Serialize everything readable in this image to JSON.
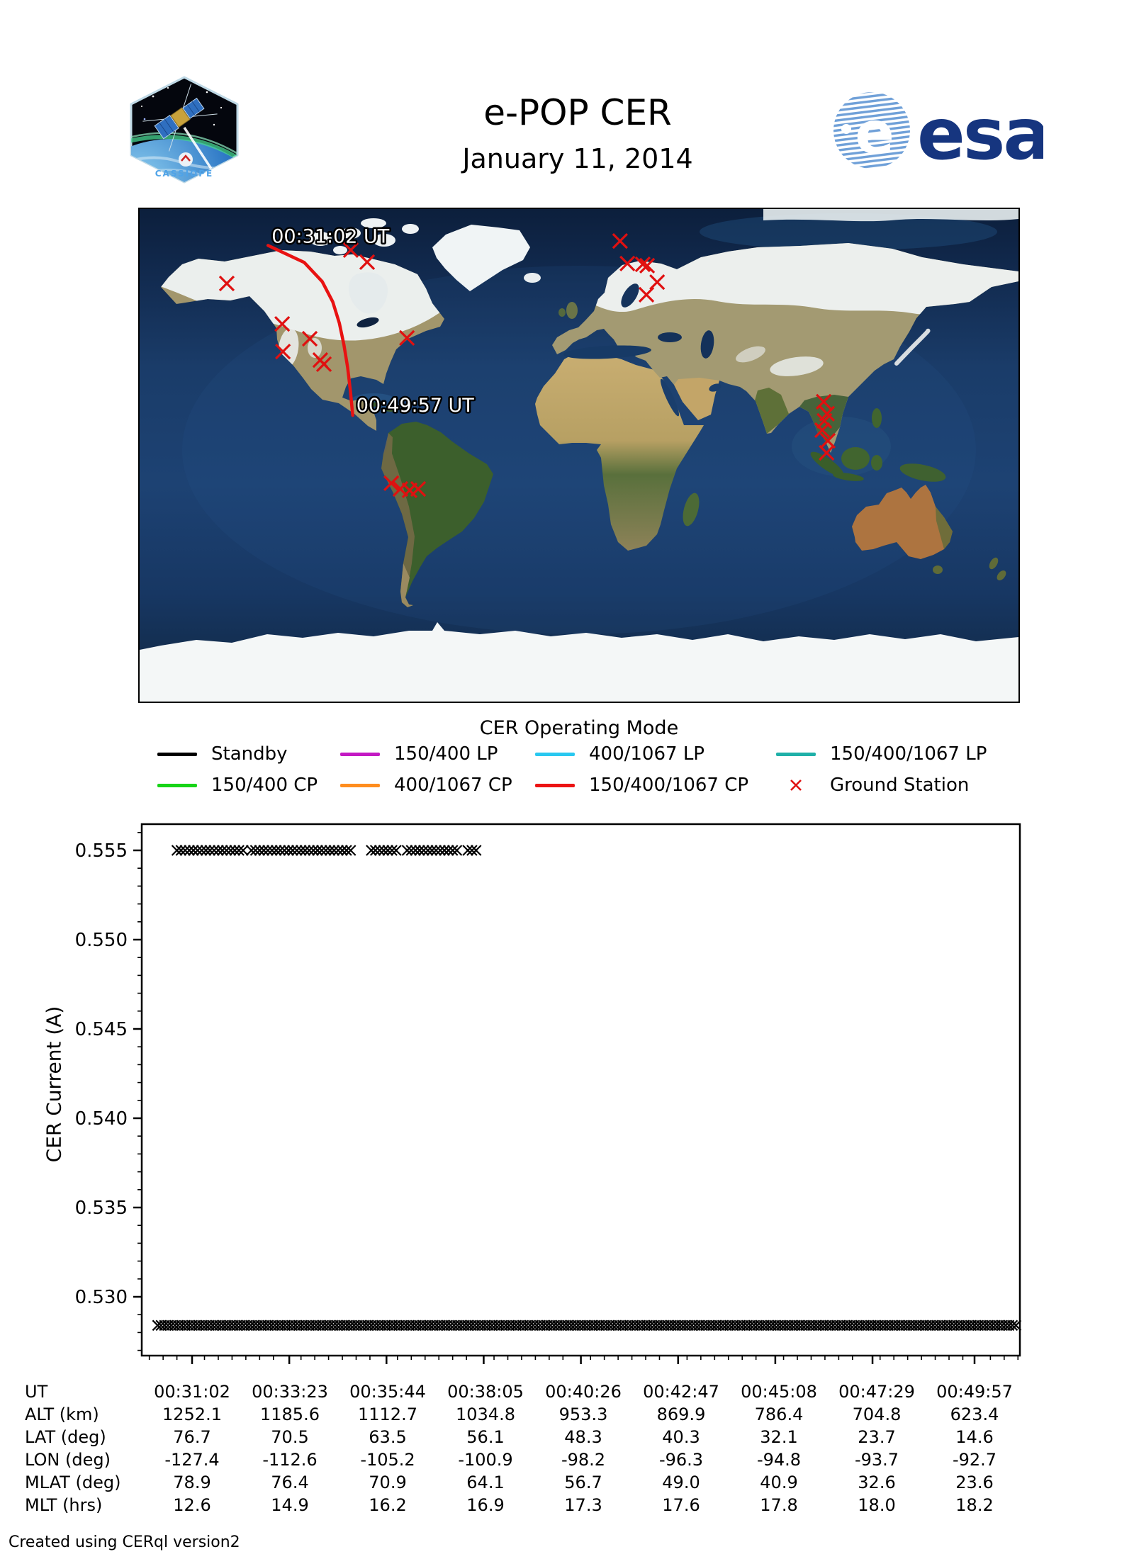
{
  "header": {
    "title": "e-POP CER",
    "date": "January 11, 2014",
    "mission_patch_text": "CASSIOPE",
    "esa_logo_text": "esa"
  },
  "colors": {
    "track_red": "#e81212",
    "ground_station_red": "#e01010",
    "esa_blue": "#16357f",
    "patch_text_blue": "#4fa3e8",
    "marker_black": "#000000"
  },
  "map": {
    "annotations": [
      {
        "text": "00:31:02 UT",
        "at": "track-start"
      },
      {
        "text": "00:49:57 UT",
        "at": "track-end"
      }
    ],
    "ground_stations": [
      {
        "lon": -144.3,
        "lat": 62.8
      },
      {
        "lon": -121.6,
        "lat": 48.0
      },
      {
        "lon": -121.3,
        "lat": 37.9
      },
      {
        "lon": -110.3,
        "lat": 42.6
      },
      {
        "lon": -106.0,
        "lat": 34.8
      },
      {
        "lon": -104.5,
        "lat": 33.3
      },
      {
        "lon": -70.5,
        "lat": 42.9
      },
      {
        "lon": -93.5,
        "lat": 75.0
      },
      {
        "lon": -86.8,
        "lat": 70.6
      },
      {
        "lon": 16.8,
        "lat": 78.3
      },
      {
        "lon": 19.8,
        "lat": 70.1
      },
      {
        "lon": 26.1,
        "lat": 69.8
      },
      {
        "lon": 27.9,
        "lat": 69.3
      },
      {
        "lon": 32.0,
        "lat": 63.3
      },
      {
        "lon": 27.6,
        "lat": 58.7
      },
      {
        "lon": -76.9,
        "lat": -10.2
      },
      {
        "lon": -73.2,
        "lat": -12.3
      },
      {
        "lon": -69.4,
        "lat": -12.8
      },
      {
        "lon": -65.9,
        "lat": -12.3
      },
      {
        "lon": 100.2,
        "lat": 19.6
      },
      {
        "lon": 101.6,
        "lat": 15.2
      },
      {
        "lon": 100.5,
        "lat": 12.6
      },
      {
        "lon": 99.6,
        "lat": 9.2
      },
      {
        "lon": 101.9,
        "lat": 5.3
      },
      {
        "lon": 101.4,
        "lat": 0.9
      }
    ]
  },
  "legend": {
    "title": "CER Operating Mode",
    "items": [
      {
        "label": "Standby",
        "color": "#000000",
        "type": "line"
      },
      {
        "label": "150/400 LP",
        "color": "#c319c3",
        "type": "line"
      },
      {
        "label": "400/1067 LP",
        "color": "#29c8f0",
        "type": "line"
      },
      {
        "label": "150/400/1067 LP",
        "color": "#1fb0a8",
        "type": "line"
      },
      {
        "label": "150/400 CP",
        "color": "#17d417",
        "type": "line"
      },
      {
        "label": "400/1067 CP",
        "color": "#ff8d1e",
        "type": "line"
      },
      {
        "label": "150/400/1067 CP",
        "color": "#ec1313",
        "type": "line"
      },
      {
        "label": "Ground Station",
        "color": "#e01010",
        "type": "x-marker"
      }
    ]
  },
  "chart_data": {
    "type": "scatter",
    "marker": "x",
    "marker_color": "#000000",
    "xlabel": "UT",
    "ylabel": "CER Current (A)",
    "ylim": [
      0.5267,
      0.5565
    ],
    "xlim_ut_sec": [
      1789,
      3063
    ],
    "ytick_labels": [
      "0.530",
      "0.535",
      "0.540",
      "0.545",
      "0.550",
      "0.555"
    ],
    "ytick_minor_step": 0.001,
    "xticks_ut_sec": [
      1862,
      2003,
      2144,
      2285,
      2426,
      2567,
      2708,
      2849,
      2997
    ],
    "xtick_labels": [
      "00:31:02",
      "00:33:23",
      "00:35:44",
      "00:38:05",
      "00:40:26",
      "00:42:47",
      "00:45:08",
      "00:47:29",
      "00:49:57"
    ],
    "xtick_minor_step_sec": 20,
    "series": [
      {
        "name": "standby-high-band",
        "y": 0.555,
        "segments_ut_sec": [
          [
            1840,
            1900
          ],
          [
            1906,
            1940
          ],
          [
            1948,
            2092
          ],
          [
            2122,
            2158
          ],
          [
            2174,
            2246
          ],
          [
            2262,
            2276
          ]
        ],
        "sample_step_sec": 6
      },
      {
        "name": "standby-low-band",
        "y": 0.5284,
        "segments_ut_sec": [
          [
            1812,
            3058
          ]
        ],
        "sample_step_sec": 5
      }
    ]
  },
  "table": {
    "rows": [
      {
        "label": "UT",
        "values": [
          "00:31:02",
          "00:33:23",
          "00:35:44",
          "00:38:05",
          "00:40:26",
          "00:42:47",
          "00:45:08",
          "00:47:29",
          "00:49:57"
        ]
      },
      {
        "label": "ALT (km)",
        "values": [
          "1252.1",
          "1185.6",
          "1112.7",
          "1034.8",
          "953.3",
          "869.9",
          "786.4",
          "704.8",
          "623.4"
        ]
      },
      {
        "label": "LAT (deg)",
        "values": [
          "76.7",
          "70.5",
          "63.5",
          "56.1",
          "48.3",
          "40.3",
          "32.1",
          "23.7",
          "14.6"
        ]
      },
      {
        "label": "LON (deg)",
        "values": [
          "-127.4",
          "-112.6",
          "-105.2",
          "-100.9",
          "-98.2",
          "-96.3",
          "-94.8",
          "-93.7",
          "-92.7"
        ]
      },
      {
        "label": "MLAT (deg)",
        "values": [
          "78.9",
          "76.4",
          "70.9",
          "64.1",
          "56.7",
          "49.0",
          "40.9",
          "32.6",
          "23.6"
        ]
      },
      {
        "label": "MLT (hrs)",
        "values": [
          "12.6",
          "14.9",
          "16.2",
          "16.9",
          "17.3",
          "17.6",
          "17.8",
          "18.0",
          "18.2"
        ]
      }
    ]
  },
  "footer": {
    "credit": "Created using CERql version2"
  }
}
